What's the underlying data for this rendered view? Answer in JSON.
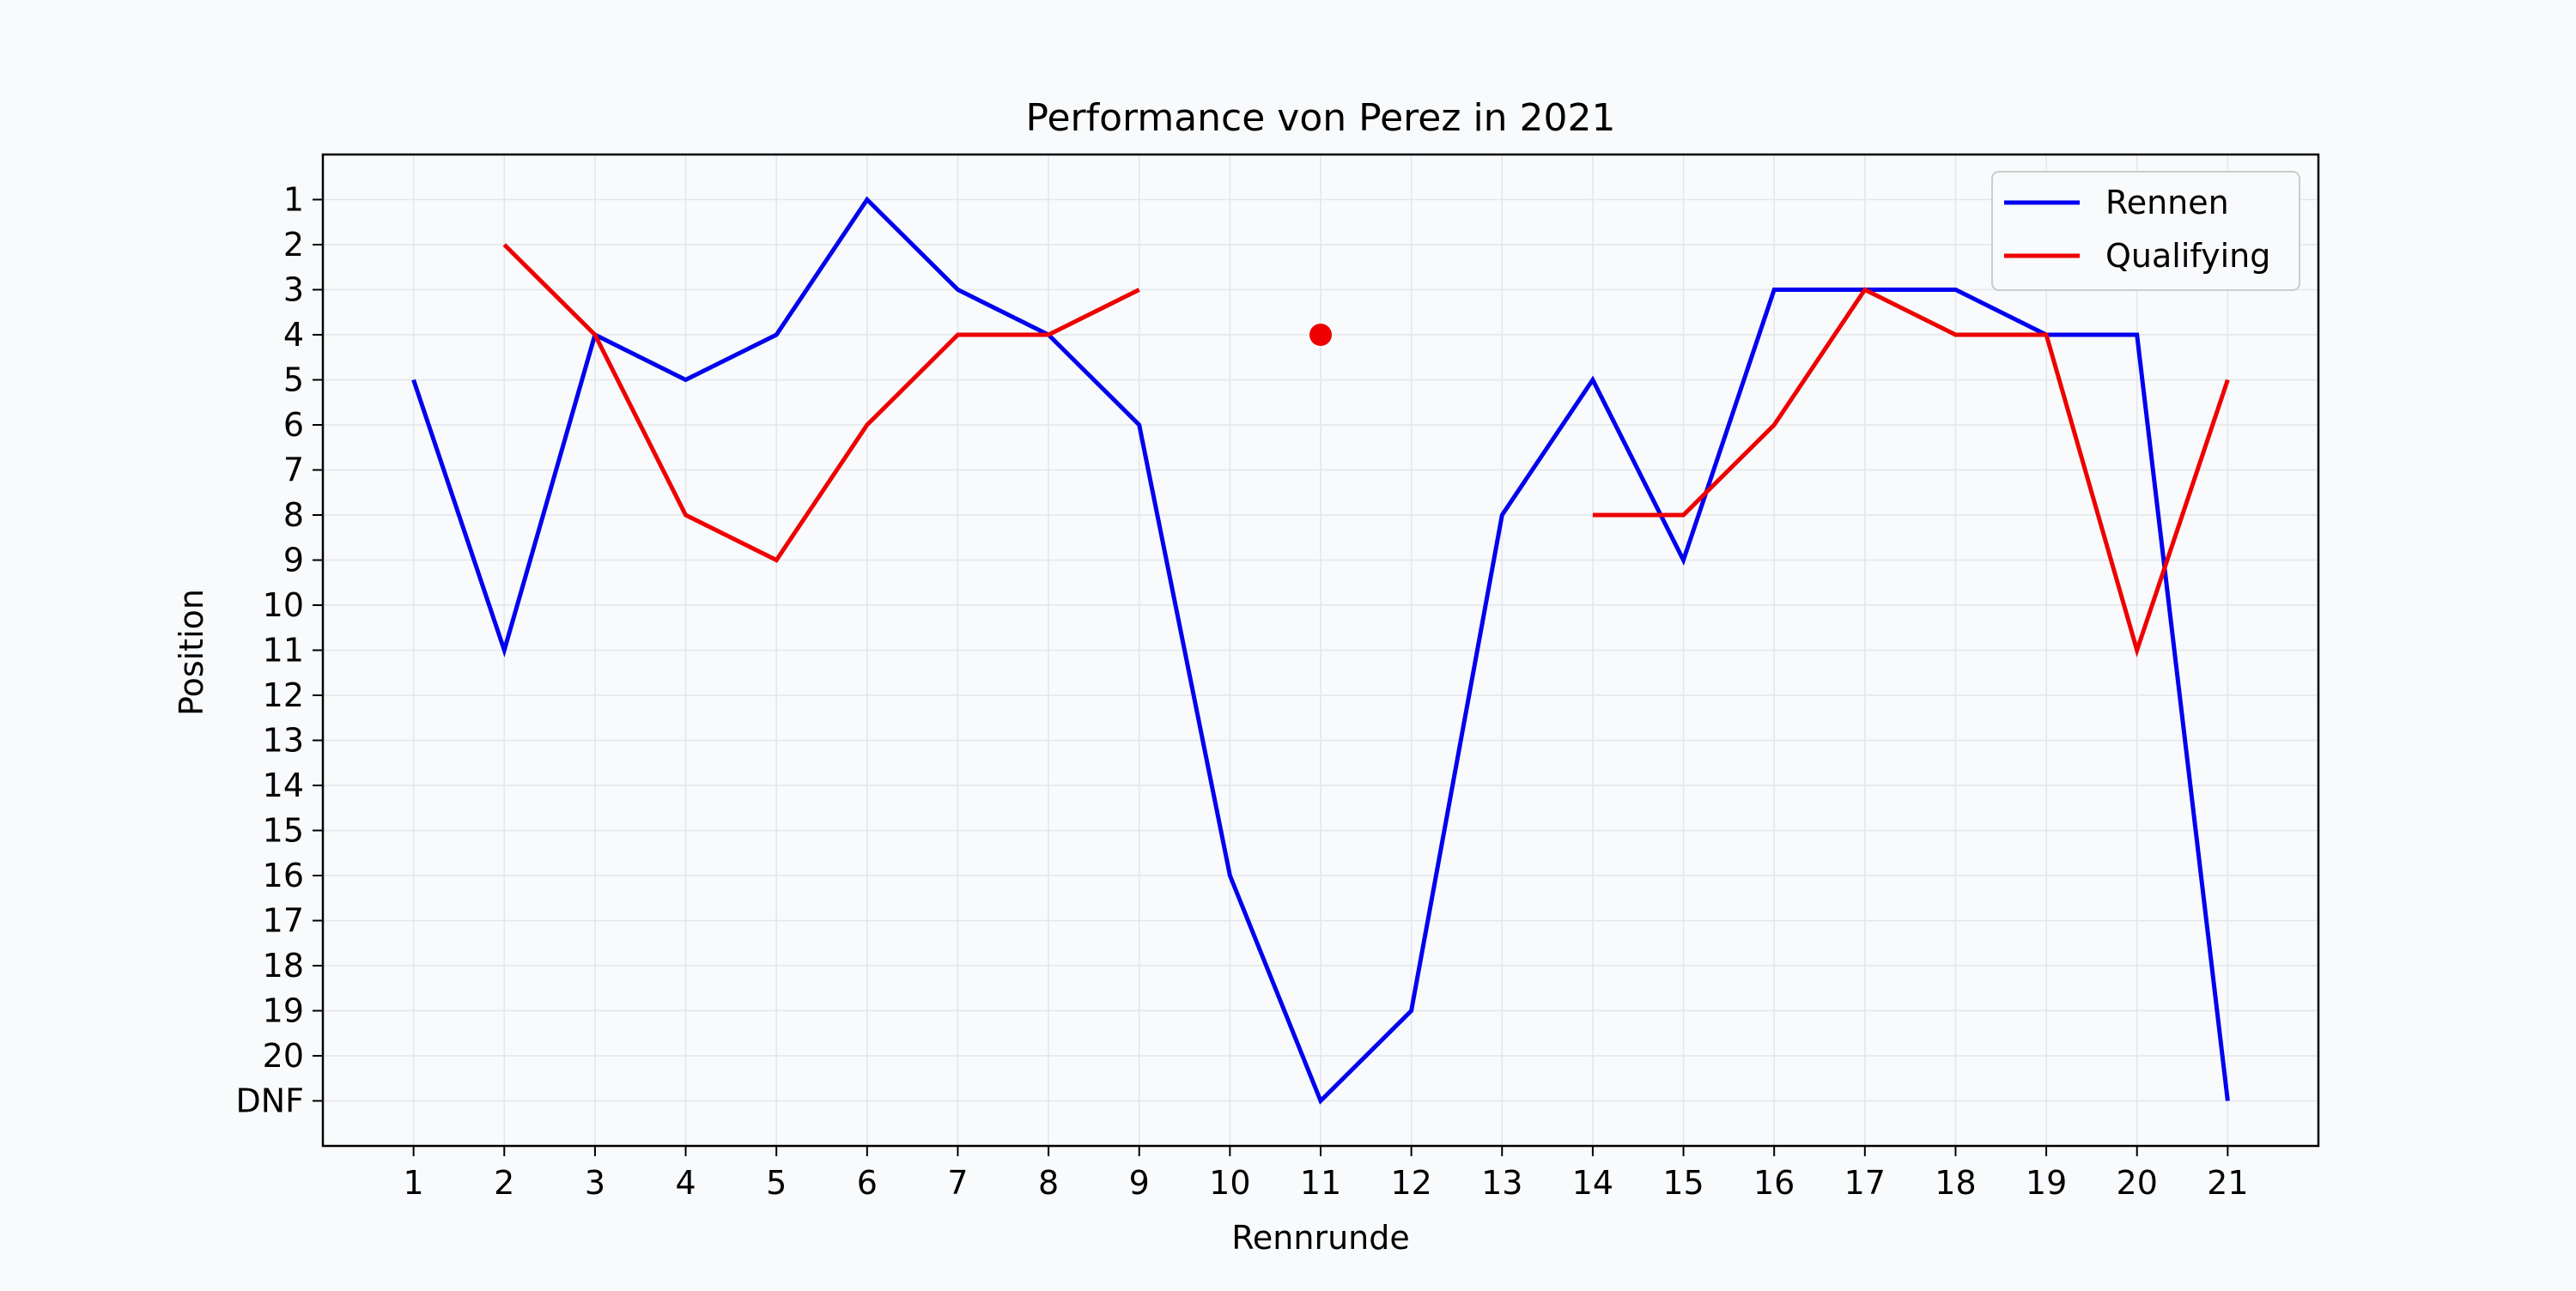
{
  "chart_data": {
    "type": "line",
    "title": "Performance von Perez in 2021",
    "xlabel": "Rennrunde",
    "ylabel": "Position",
    "x": [
      1,
      2,
      3,
      4,
      5,
      6,
      7,
      8,
      9,
      10,
      11,
      12,
      13,
      14,
      15,
      16,
      17,
      18,
      19,
      20,
      21
    ],
    "x_ticks": [
      "1",
      "2",
      "3",
      "4",
      "5",
      "6",
      "7",
      "8",
      "9",
      "10",
      "11",
      "12",
      "13",
      "14",
      "15",
      "16",
      "17",
      "18",
      "19",
      "20",
      "21"
    ],
    "y_ticks": [
      "1",
      "2",
      "3",
      "4",
      "5",
      "6",
      "7",
      "8",
      "9",
      "10",
      "11",
      "12",
      "13",
      "14",
      "15",
      "16",
      "17",
      "18",
      "19",
      "20",
      "DNF"
    ],
    "y_inverted": true,
    "xlim": [
      0,
      22.0
    ],
    "ylim": [
      22.0,
      0
    ],
    "grid": true,
    "legend_position": "top-right",
    "series": [
      {
        "name": "Rennen",
        "color": "#0000ee",
        "values": [
          5,
          11,
          4,
          5,
          4,
          1,
          3,
          4,
          6,
          16,
          "DNF",
          19,
          8,
          5,
          9,
          3,
          3,
          3,
          4,
          4,
          "DNF"
        ]
      },
      {
        "name": "Qualifying",
        "color": "#ee0000",
        "values": [
          null,
          2,
          4,
          8,
          9,
          6,
          4,
          4,
          3,
          null,
          4,
          null,
          null,
          8,
          8,
          6,
          3,
          4,
          4,
          11,
          5
        ]
      }
    ]
  }
}
